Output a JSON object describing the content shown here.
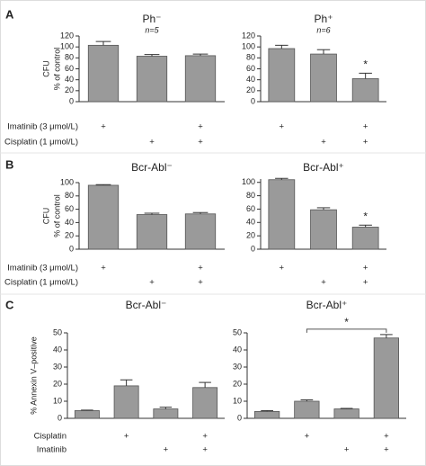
{
  "chart_data": [
    {
      "type": "bar",
      "panel": "A",
      "title": "Ph⁻",
      "subtitle": "n=5",
      "ylabel": [
        "CFU",
        "% of control"
      ],
      "values": [
        103,
        83,
        84
      ],
      "errors": [
        7,
        3,
        3
      ],
      "color": "#9a9a9a",
      "ylim": [
        0,
        120
      ],
      "yticks": [
        0,
        20,
        40,
        60,
        80,
        100,
        120
      ],
      "treatments": [
        {
          "label": "Imatinib (3 μmol/L)",
          "marks": [
            "+",
            null,
            "+"
          ]
        },
        {
          "label": "Cisplatin (1 μmol/L)",
          "marks": [
            null,
            "+",
            "+"
          ]
        }
      ]
    },
    {
      "type": "bar",
      "title": "Ph⁺",
      "subtitle": "n=6",
      "values": [
        97,
        87,
        42
      ],
      "errors": [
        6,
        8,
        10
      ],
      "color": "#9a9a9a",
      "annotations": [
        null,
        null,
        "*"
      ],
      "ylim": [
        0,
        120
      ],
      "yticks": [
        0,
        20,
        40,
        60,
        80,
        100,
        120
      ],
      "treatments": [
        {
          "marks": [
            "+",
            null,
            "+"
          ]
        },
        {
          "marks": [
            null,
            "+",
            "+"
          ]
        }
      ]
    },
    {
      "type": "bar",
      "panel": "B",
      "title": "Bcr-Abl⁻",
      "ylabel": [
        "CFU",
        "% of control"
      ],
      "values": [
        96,
        52,
        53
      ],
      "errors": [
        1,
        2,
        2
      ],
      "color": "#9a9a9a",
      "ylim": [
        0,
        100
      ],
      "yticks": [
        0,
        20,
        40,
        60,
        80,
        100
      ],
      "treatments": [
        {
          "label": "Imatinib (3 μmol/L)",
          "marks": [
            "+",
            null,
            "+"
          ]
        },
        {
          "label": "Cisplatin (1 μmol/L)",
          "marks": [
            null,
            "+",
            "+"
          ]
        }
      ]
    },
    {
      "type": "bar",
      "title": "Bcr-Abl⁺",
      "values": [
        104,
        59,
        33
      ],
      "errors": [
        2,
        3,
        3
      ],
      "color": "#9a9a9a",
      "annotations": [
        null,
        null,
        "*"
      ],
      "ylim": [
        0,
        105
      ],
      "yticks": [
        0,
        20,
        40,
        60,
        80,
        100
      ],
      "treatments": [
        {
          "marks": [
            "+",
            null,
            "+"
          ]
        },
        {
          "marks": [
            null,
            "+",
            "+"
          ]
        }
      ]
    },
    {
      "type": "bar",
      "panel": "C",
      "title": "Bcr-Abl⁻",
      "ylabel": [
        "% Annexin V–positive"
      ],
      "values": [
        4.5,
        19,
        5.5,
        18
      ],
      "errors": [
        0.3,
        3.5,
        1,
        3
      ],
      "color": "#9a9a9a",
      "ylim": [
        0,
        50
      ],
      "yticks": [
        0,
        10,
        20,
        30,
        40,
        50
      ],
      "treatments": [
        {
          "label": "Cisplatin",
          "marks": [
            null,
            "+",
            null,
            "+"
          ]
        },
        {
          "label": "Imatinib",
          "marks": [
            null,
            null,
            "+",
            "+"
          ]
        }
      ]
    },
    {
      "type": "bar",
      "title": "Bcr-Abl⁺",
      "values": [
        4,
        10,
        5.5,
        47
      ],
      "errors": [
        0.5,
        0.8,
        0.3,
        2
      ],
      "color": "#9a9a9a",
      "comparison": {
        "text": "*",
        "between": [
          1,
          3
        ]
      },
      "ylim": [
        0,
        50
      ],
      "yticks": [
        0,
        10,
        20,
        30,
        40,
        50
      ],
      "treatments": [
        {
          "marks": [
            null,
            "+",
            null,
            "+"
          ]
        },
        {
          "marks": [
            null,
            null,
            "+",
            "+"
          ]
        }
      ]
    }
  ]
}
